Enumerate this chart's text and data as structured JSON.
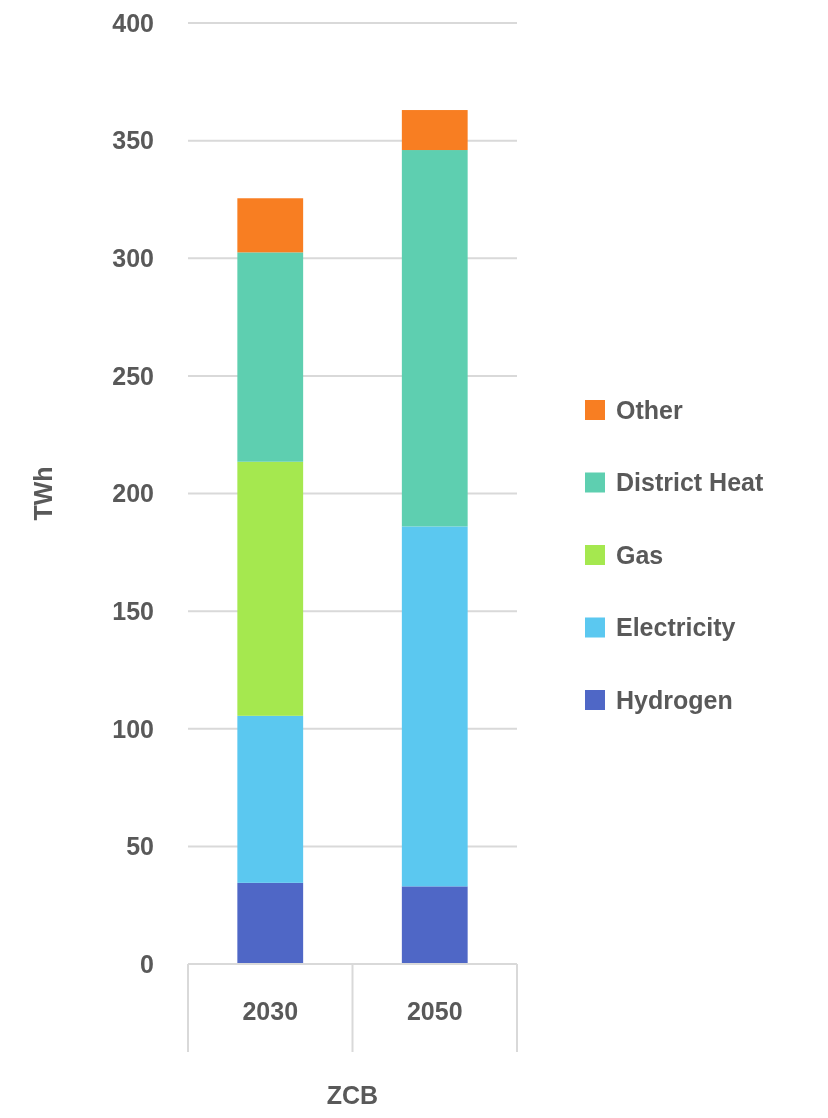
{
  "chart_data": {
    "type": "bar",
    "stacked": true,
    "categories": [
      "2030",
      "2050"
    ],
    "xlabel": "ZCB",
    "ylabel": "TWh",
    "ylim": [
      0,
      400
    ],
    "yticks": [
      0,
      50,
      100,
      150,
      200,
      250,
      300,
      350,
      400
    ],
    "grid": "y",
    "legend": "right",
    "series": [
      {
        "name": "Hydrogen",
        "color": "#4f67c6",
        "values": [
          34.5,
          33
        ]
      },
      {
        "name": "Electricity",
        "color": "#5bc8f0",
        "values": [
          71,
          153
        ]
      },
      {
        "name": "Gas",
        "color": "#a5e84f",
        "values": [
          108,
          0
        ]
      },
      {
        "name": "District Heat",
        "color": "#5ecfb0",
        "values": [
          89,
          160
        ]
      },
      {
        "name": "Other",
        "color": "#f87e22",
        "values": [
          23,
          17
        ]
      }
    ]
  }
}
